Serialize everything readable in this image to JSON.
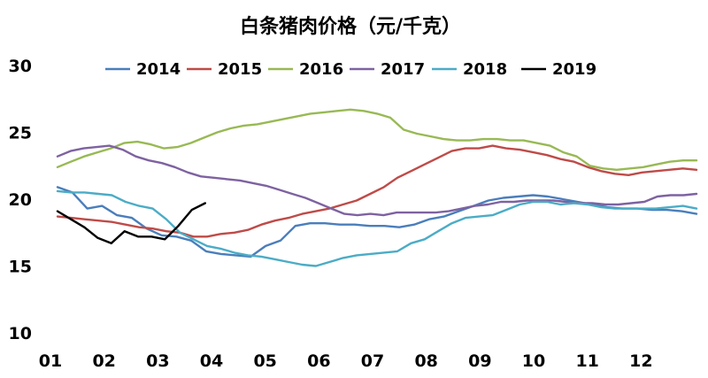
{
  "chart_data": {
    "type": "line",
    "title": "白条猪肉价格（元/千克）",
    "xlabel": "",
    "ylabel": "",
    "x_tick_labels": [
      "01",
      "02",
      "03",
      "04",
      "05",
      "06",
      "07",
      "08",
      "09",
      "10",
      "11",
      "12"
    ],
    "ylim": [
      10,
      30
    ],
    "y_ticks": [
      10,
      15,
      20,
      25,
      30
    ],
    "grid": false,
    "legend_position": "top",
    "series": [
      {
        "name": "2014",
        "color": "#4a7ebb",
        "values": [
          20.9,
          20.5,
          19.3,
          19.5,
          18.8,
          18.6,
          17.8,
          17.3,
          17.2,
          16.9,
          16.1,
          15.9,
          15.8,
          15.7,
          16.5,
          16.9,
          18.0,
          18.2,
          18.2,
          18.1,
          18.1,
          18.0,
          18.0,
          17.9,
          18.1,
          18.5,
          18.7,
          19.1,
          19.5,
          19.9,
          20.1,
          20.2,
          20.3,
          20.2,
          20.0,
          19.8,
          19.6,
          19.4,
          19.3,
          19.3,
          19.2,
          19.2,
          19.1,
          18.9
        ]
      },
      {
        "name": "2015",
        "color": "#be4b48",
        "values": [
          18.7,
          18.6,
          18.5,
          18.4,
          18.3,
          18.1,
          17.9,
          17.8,
          17.6,
          17.5,
          17.2,
          17.2,
          17.4,
          17.5,
          17.7,
          18.1,
          18.4,
          18.6,
          18.9,
          19.1,
          19.3,
          19.6,
          19.9,
          20.4,
          20.9,
          21.6,
          22.1,
          22.6,
          23.1,
          23.6,
          23.8,
          23.8,
          24.0,
          23.8,
          23.7,
          23.5,
          23.3,
          23.0,
          22.8,
          22.4,
          22.1,
          21.9,
          21.8,
          22.0,
          22.1,
          22.2,
          22.3,
          22.2
        ]
      },
      {
        "name": "2016",
        "color": "#98b954",
        "values": [
          22.4,
          22.8,
          23.2,
          23.5,
          23.8,
          24.2,
          24.3,
          24.1,
          23.8,
          23.9,
          24.2,
          24.6,
          25.0,
          25.3,
          25.5,
          25.6,
          25.8,
          26.0,
          26.2,
          26.4,
          26.5,
          26.6,
          26.7,
          26.6,
          26.4,
          26.1,
          25.2,
          24.9,
          24.7,
          24.5,
          24.4,
          24.4,
          24.5,
          24.5,
          24.4,
          24.4,
          24.2,
          24.0,
          23.5,
          23.2,
          22.5,
          22.3,
          22.2,
          22.3,
          22.4,
          22.6,
          22.8,
          22.9,
          22.9
        ]
      },
      {
        "name": "2017",
        "color": "#7e62a1",
        "values": [
          23.2,
          23.6,
          23.8,
          23.9,
          24.0,
          23.7,
          23.2,
          22.9,
          22.7,
          22.4,
          22.0,
          21.7,
          21.6,
          21.5,
          21.4,
          21.2,
          21.0,
          20.7,
          20.4,
          20.1,
          19.7,
          19.3,
          18.9,
          18.8,
          18.9,
          18.8,
          19.0,
          19.0,
          19.0,
          19.0,
          19.1,
          19.3,
          19.5,
          19.6,
          19.8,
          19.8,
          19.9,
          19.9,
          19.9,
          19.8,
          19.7,
          19.7,
          19.6,
          19.6,
          19.7,
          19.8,
          20.2,
          20.3,
          20.3,
          20.4
        ]
      },
      {
        "name": "2018",
        "color": "#4bacc6",
        "values": [
          20.6,
          20.5,
          20.5,
          20.4,
          20.3,
          19.8,
          19.5,
          19.3,
          18.5,
          17.5,
          17.0,
          16.5,
          16.3,
          16.0,
          15.8,
          15.7,
          15.5,
          15.3,
          15.1,
          15.0,
          15.3,
          15.6,
          15.8,
          15.9,
          16.0,
          16.1,
          16.7,
          17.0,
          17.6,
          18.2,
          18.6,
          18.7,
          18.8,
          19.2,
          19.6,
          19.8,
          19.8,
          19.6,
          19.7,
          19.6,
          19.4,
          19.3,
          19.3,
          19.3,
          19.3,
          19.4,
          19.5,
          19.3
        ]
      },
      {
        "name": "2019",
        "color": "#000000",
        "values": [
          19.1,
          18.5,
          17.9,
          17.1,
          16.7,
          17.6,
          17.2,
          17.2,
          17.0,
          18.0,
          19.2,
          19.7
        ]
      }
    ]
  }
}
